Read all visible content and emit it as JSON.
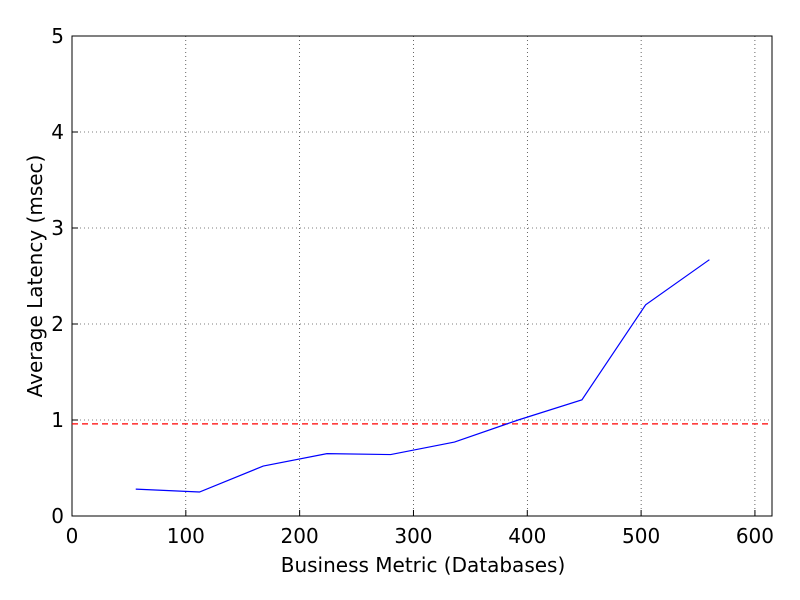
{
  "chart_data": {
    "type": "line",
    "x_label": "Business Metric (Databases)",
    "y_label": "Average Latency (msec)",
    "x": [
      56,
      112,
      168,
      224,
      280,
      336,
      392,
      448,
      504,
      560
    ],
    "series": [
      {
        "color": "#0000ff",
        "values": [
          0.28,
          0.25,
          0.52,
          0.65,
          0.64,
          0.77,
          1.0,
          1.21,
          2.2,
          2.67
        ]
      }
    ],
    "reference_line": {
      "value": 0.96,
      "color": "#ff0000"
    },
    "xlim": [
      0,
      615
    ],
    "xticks": [
      0,
      100,
      200,
      300,
      400,
      500,
      600
    ],
    "ylim": [
      0,
      5
    ],
    "yticks": [
      0,
      1,
      2,
      3,
      4,
      5
    ],
    "grid": true
  }
}
